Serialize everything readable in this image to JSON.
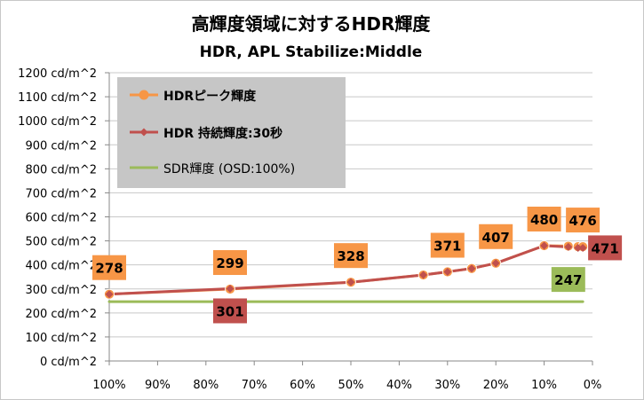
{
  "chart_data": {
    "type": "line",
    "title": "高輝度領域に対するHDR輝度",
    "subtitle": "HDR, APL Stabilize:Middle",
    "xlabel": "",
    "ylabel": "",
    "x_direction": "reversed",
    "xlim": [
      0,
      100
    ],
    "ylim": [
      0,
      1200
    ],
    "x_ticks": [
      "100%",
      "90%",
      "80%",
      "70%",
      "60%",
      "50%",
      "40%",
      "30%",
      "20%",
      "10%",
      "0%"
    ],
    "x_tick_values": [
      100,
      90,
      80,
      70,
      60,
      50,
      40,
      30,
      20,
      10,
      0
    ],
    "y_ticks": [
      "0 cd/m^2",
      "100 cd/m^2",
      "200 cd/m^2",
      "300 cd/m^2",
      "400 cd/m^2",
      "500 cd/m^2",
      "600 cd/m^2",
      "700 cd/m^2",
      "800 cd/m^2",
      "900 cd/m^2",
      "1000 cd/m^2",
      "1100 cd/m^2",
      "1200 cd/m^2"
    ],
    "y_tick_values": [
      0,
      100,
      200,
      300,
      400,
      500,
      600,
      700,
      800,
      900,
      1000,
      1100,
      1200
    ],
    "grid": true,
    "legend_position": "top-left",
    "series": [
      {
        "name": "HDRピーク輝度",
        "color": "#f79646",
        "marker": "circle",
        "x": [
          100,
          75,
          50,
          35,
          30,
          25,
          20,
          10,
          5,
          3,
          2
        ],
        "y": [
          278,
          299,
          328,
          358,
          371,
          385,
          407,
          480,
          478,
          476,
          476
        ]
      },
      {
        "name": "HDR 持続輝度:30秒",
        "color": "#c0504d",
        "marker": "diamond",
        "x": [
          100,
          75,
          50,
          35,
          30,
          25,
          20,
          10,
          5,
          3,
          2
        ],
        "y": [
          278,
          301,
          328,
          358,
          371,
          385,
          407,
          480,
          475,
          471,
          471
        ]
      },
      {
        "name": "SDR輝度 (OSD:100%)",
        "color": "#9bbb59",
        "marker": "none",
        "x": [
          100,
          2
        ],
        "y": [
          247,
          247
        ]
      }
    ],
    "data_labels": [
      {
        "text": "278",
        "x": 100,
        "y": 278,
        "series": 0
      },
      {
        "text": "299",
        "x": 75,
        "y": 299,
        "series": 0
      },
      {
        "text": "328",
        "x": 50,
        "y": 328,
        "series": 0
      },
      {
        "text": "371",
        "x": 30,
        "y": 371,
        "series": 0
      },
      {
        "text": "407",
        "x": 20,
        "y": 407,
        "series": 0
      },
      {
        "text": "480",
        "x": 10,
        "y": 480,
        "series": 0
      },
      {
        "text": "476",
        "x": 2,
        "y": 476,
        "series": 0
      },
      {
        "text": "301",
        "x": 75,
        "y": 301,
        "series": 1
      },
      {
        "text": "471",
        "x": 2,
        "y": 471,
        "series": 1
      },
      {
        "text": "247",
        "x": 5,
        "y": 247,
        "series": 2
      }
    ]
  }
}
